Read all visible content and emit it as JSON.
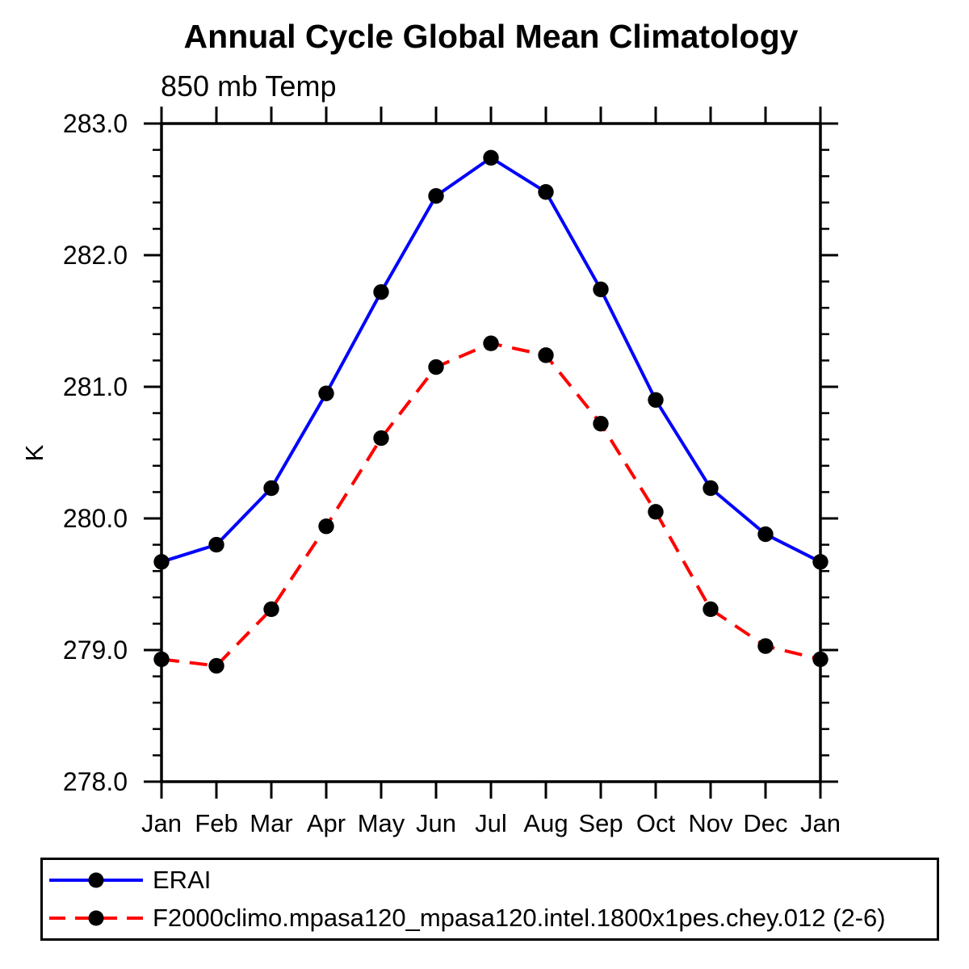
{
  "title": "Annual Cycle Global Mean Climatology",
  "subtitle": "850 mb Temp",
  "y_axis_label": "K",
  "colors": {
    "erai_line": "#0000ff",
    "model_line": "#ff0000",
    "marker": "#000000",
    "axis": "#000000",
    "background": "#ffffff"
  },
  "chart_data": {
    "type": "line",
    "title": "Annual Cycle Global Mean Climatology",
    "subtitle": "850 mb Temp",
    "xlabel": "",
    "ylabel": "K",
    "ylim": [
      278.0,
      283.0
    ],
    "y_major_tick_interval": 1.0,
    "y_minor_tick_interval": 0.2,
    "y_tick_labels": [
      "278.0",
      "279.0",
      "280.0",
      "281.0",
      "282.0",
      "283.0"
    ],
    "categories": [
      "Jan",
      "Feb",
      "Mar",
      "Apr",
      "May",
      "Jun",
      "Jul",
      "Aug",
      "Sep",
      "Oct",
      "Nov",
      "Dec",
      "Jan"
    ],
    "grid": false,
    "legend_position": "bottom",
    "series": [
      {
        "name": "ERAI",
        "line_color": "#0000ff",
        "line_style": "solid",
        "marker": "filled-circle",
        "marker_color": "#000000",
        "values": [
          279.67,
          279.8,
          280.23,
          280.95,
          281.72,
          282.45,
          282.74,
          282.48,
          281.74,
          280.9,
          280.23,
          279.88,
          279.67
        ]
      },
      {
        "name": "F2000climo.mpasa120_mpasa120.intel.1800x1pes.chey.012 (2-6)",
        "line_color": "#ff0000",
        "line_style": "dashed",
        "marker": "filled-circle",
        "marker_color": "#000000",
        "values": [
          278.93,
          278.88,
          279.31,
          279.94,
          280.61,
          281.15,
          281.33,
          281.24,
          280.72,
          280.05,
          279.31,
          279.03,
          278.93
        ]
      }
    ]
  }
}
